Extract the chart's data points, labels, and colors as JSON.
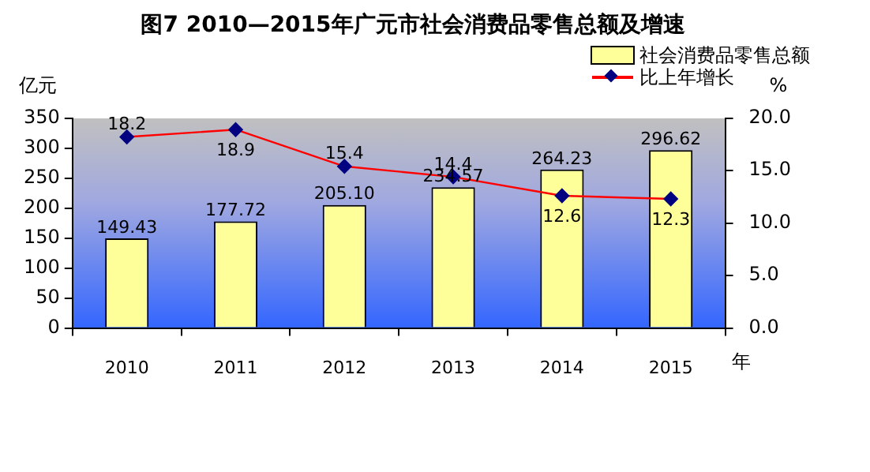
{
  "chart_data": {
    "type": "bar",
    "title": "图7 2010—2015年广元市社会消费品零售总额及增速",
    "categories": [
      "2010",
      "2011",
      "2012",
      "2013",
      "2014",
      "2015"
    ],
    "xlabel": "年",
    "ylabel": "亿元",
    "y2label": "%",
    "series": [
      {
        "name": "社会消费品零售总额",
        "color": "#ffff99",
        "values": [
          149.43,
          177.72,
          205.1,
          234.57,
          264.23,
          296.62
        ],
        "value_labels": [
          "149.43",
          "177.72",
          "205.10",
          "234.57",
          "264.23",
          "296.62"
        ]
      },
      {
        "name": "比上年增长",
        "type": "line",
        "axis": "y2",
        "color": "#ff0000",
        "marker": "diamond",
        "values": [
          18.2,
          18.9,
          15.4,
          14.4,
          12.6,
          12.3
        ]
      }
    ],
    "ylim": [
      0,
      350
    ],
    "yticks": [
      0,
      50,
      100,
      150,
      200,
      250,
      300,
      350
    ],
    "y2lim": [
      0,
      20
    ],
    "y2ticks": [
      {
        "value": 0,
        "label": "0.0"
      },
      {
        "value": 5,
        "label": "5.0"
      },
      {
        "value": 10,
        "label": "10.0"
      },
      {
        "value": 15,
        "label": "15.0"
      },
      {
        "value": 20,
        "label": "20.0"
      }
    ],
    "data_labels": true,
    "grid": false,
    "legend": "top right"
  }
}
